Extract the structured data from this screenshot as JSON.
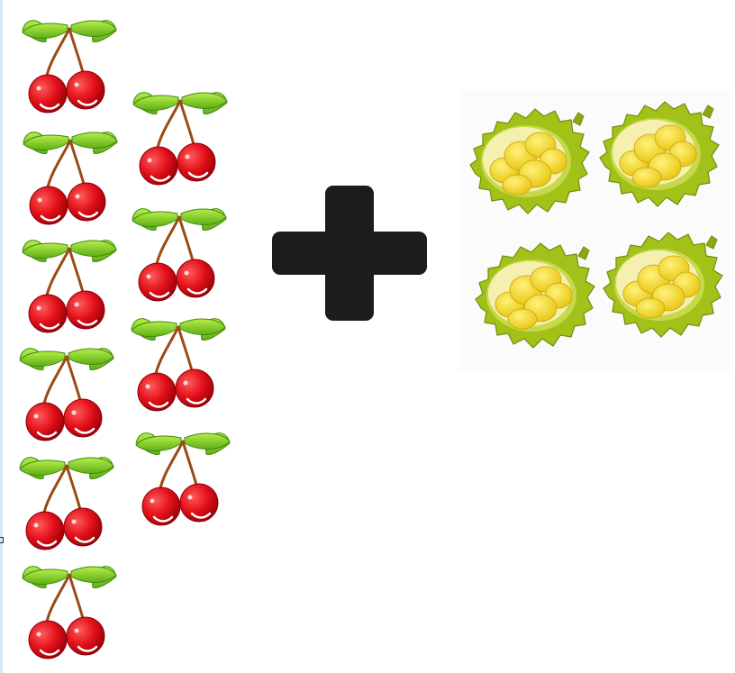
{
  "scene": {
    "colors": {
      "leaf": "#7ed321",
      "leaf_dark": "#4f9a12",
      "stem": "#9b4a14",
      "cherry": "#e3101a",
      "cherry_dark": "#a8000c",
      "operator": "#1c1c1c",
      "durian_husk": "#a2c21a",
      "durian_flesh": "#f7e22b"
    },
    "groups": [
      {
        "name": "cherry-group",
        "item": "cherry-icon",
        "count": 10
      },
      {
        "name": "plus-operator",
        "item": "plus-icon",
        "count": 1
      },
      {
        "name": "durian-group",
        "item": "durian-icon",
        "count": 4
      }
    ]
  }
}
